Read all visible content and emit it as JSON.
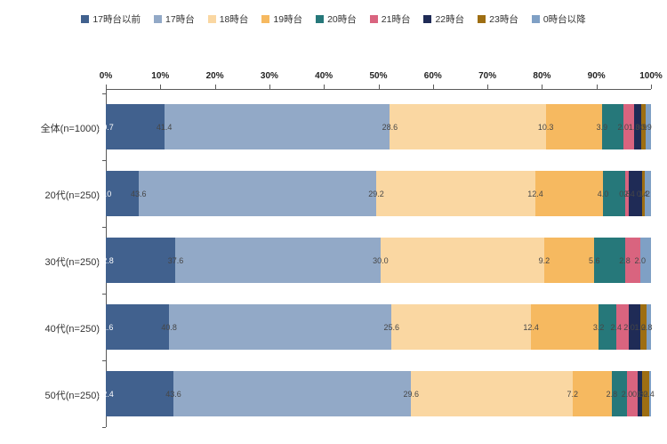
{
  "chart_data": {
    "type": "bar",
    "subtype": "horizontal-stacked",
    "unit": "%",
    "title": "",
    "legend_position": "top",
    "grid": false,
    "xlim": [
      0,
      100
    ],
    "x_ticks": [
      "0%",
      "10%",
      "20%",
      "30%",
      "40%",
      "50%",
      "60%",
      "70%",
      "80%",
      "90%",
      "100%"
    ],
    "categories": [
      "全体(n=1000)",
      "20代(n=250)",
      "30代(n=250)",
      "40代(n=250)",
      "50代(n=250)"
    ],
    "series": [
      {
        "name": "17時台以前",
        "color": "#41618e",
        "label_style": "light",
        "values": [
          10.7,
          6.0,
          12.8,
          11.6,
          12.4
        ]
      },
      {
        "name": "17時台",
        "color": "#92a9c7",
        "label_style": "dark",
        "values": [
          41.4,
          43.6,
          37.6,
          40.8,
          43.6
        ]
      },
      {
        "name": "18時台",
        "color": "#fad7a2",
        "label_style": "dark",
        "values": [
          28.6,
          29.2,
          30.0,
          25.6,
          29.6
        ]
      },
      {
        "name": "19時台",
        "color": "#f6b960",
        "label_style": "dark",
        "values": [
          10.3,
          12.4,
          9.2,
          12.4,
          7.2
        ]
      },
      {
        "name": "20時台",
        "color": "#26787a",
        "label_style": "dark",
        "values": [
          3.9,
          4.0,
          5.6,
          3.2,
          2.8
        ]
      },
      {
        "name": "21時台",
        "color": "#d9647f",
        "label_style": "dark",
        "values": [
          2.0,
          0.8,
          2.8,
          2.4,
          2.0
        ]
      },
      {
        "name": "22時台",
        "color": "#1f2b56",
        "label_style": "dark",
        "values": [
          1.3,
          2.4,
          0.0,
          2.0,
          0.8
        ]
      },
      {
        "name": "23時台",
        "color": "#9e6e12",
        "label_style": "dark",
        "values": [
          0.9,
          0.4,
          0.0,
          1.2,
          1.2
        ]
      },
      {
        "name": "0時台以降",
        "color": "#7fa0c5",
        "label_style": "dark",
        "values": [
          0.9,
          1.2,
          2.0,
          0.8,
          0.4
        ]
      }
    ],
    "axis_color": "#595959",
    "value_label_decimals": 1
  }
}
